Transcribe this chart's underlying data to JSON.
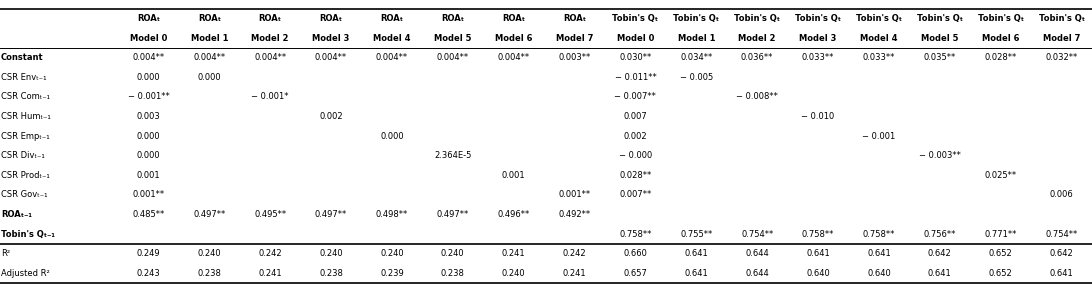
{
  "col_headers_line1": [
    "",
    "ROAₜ",
    "ROAₜ",
    "ROAₜ",
    "ROAₜ",
    "ROAₜ",
    "ROAₜ",
    "ROAₜ",
    "ROAₜ",
    "Tobin's Qₜ",
    "Tobin's Qₜ",
    "Tobin's Qₜ",
    "Tobin's Qₜ",
    "Tobin's Qₜ",
    "Tobin's Qₜ",
    "Tobin's Qₜ",
    "Tobin's Qₜ"
  ],
  "col_headers_line2": [
    "",
    "Model 0",
    "Model 1",
    "Model 2",
    "Model 3",
    "Model 4",
    "Model 5",
    "Model 6",
    "Model 7",
    "Model 0",
    "Model 1",
    "Model 2",
    "Model 3",
    "Model 4",
    "Model 5",
    "Model 6",
    "Model 7"
  ],
  "rows": [
    {
      "label": "Constant",
      "bold": true,
      "italic": false,
      "separator_above": false,
      "values": [
        "0.004**",
        "0.004**",
        "0.004**",
        "0.004**",
        "0.004**",
        "0.004**",
        "0.004**",
        "0.003**",
        "0.030**",
        "0.034**",
        "0.036**",
        "0.033**",
        "0.033**",
        "0.035**",
        "0.028**",
        "0.032**"
      ]
    },
    {
      "label": "CSR Envₜ-ₜ-1",
      "bold": false,
      "italic": false,
      "separator_above": false,
      "sub_label": "t-1",
      "values": [
        "0.000",
        "0.000",
        "",
        "",
        "",
        "",
        "",
        "",
        "− 0.011**",
        "− 0.005",
        "",
        "",
        "",
        "",
        "",
        ""
      ]
    },
    {
      "label": "CSR Comₜ-ₜ-1",
      "bold": false,
      "italic": false,
      "separator_above": false,
      "values": [
        "− 0.001**",
        "",
        "− 0.001*",
        "",
        "",
        "",
        "",
        "",
        "− 0.007**",
        "",
        "− 0.008**",
        "",
        "",
        "",
        "",
        ""
      ]
    },
    {
      "label": "CSR Humₜ-ₜ-1",
      "bold": false,
      "italic": false,
      "separator_above": false,
      "values": [
        "0.003",
        "",
        "",
        "0.002",
        "",
        "",
        "",
        "",
        "0.007",
        "",
        "",
        "− 0.010",
        "",
        "",
        "",
        ""
      ]
    },
    {
      "label": "CSR Empₜ-ₜ-1",
      "bold": false,
      "italic": false,
      "separator_above": false,
      "values": [
        "0.000",
        "",
        "",
        "",
        "0.000",
        "",
        "",
        "",
        "0.002",
        "",
        "",
        "",
        "− 0.001",
        "",
        "",
        ""
      ]
    },
    {
      "label": "CSR Divₜ-ₜ-1",
      "bold": false,
      "italic": false,
      "separator_above": false,
      "values": [
        "0.000",
        "",
        "",
        "",
        "",
        "2.364E-5",
        "",
        "",
        "− 0.000",
        "",
        "",
        "",
        "",
        "− 0.003**",
        "",
        ""
      ]
    },
    {
      "label": "CSR Prodₜ-ₜ-1",
      "bold": false,
      "italic": false,
      "separator_above": false,
      "values": [
        "0.001",
        "",
        "",
        "",
        "",
        "",
        "0.001",
        "",
        "0.028**",
        "",
        "",
        "",
        "",
        "",
        "0.025**",
        ""
      ]
    },
    {
      "label": "CSR Govₜ-ₜ-1",
      "bold": false,
      "italic": false,
      "separator_above": false,
      "values": [
        "0.001**",
        "",
        "",
        "",
        "",
        "",
        "",
        "0.001**",
        "0.007**",
        "",
        "",
        "",
        "",
        "",
        "",
        "0.006"
      ]
    },
    {
      "label": "ROAₜ-1",
      "bold": true,
      "italic": false,
      "separator_above": false,
      "values": [
        "0.485**",
        "0.497**",
        "0.495**",
        "0.497**",
        "0.498**",
        "0.497**",
        "0.496**",
        "0.492**",
        "",
        "",
        "",
        "",
        "",
        "",
        "",
        ""
      ]
    },
    {
      "label": "Tobin's Qₜ-1",
      "bold": true,
      "italic": false,
      "separator_above": false,
      "values": [
        "",
        "",
        "",
        "",
        "",
        "",
        "",
        "",
        "0.758**",
        "0.755**",
        "0.754**",
        "0.758**",
        "0.758**",
        "0.756**",
        "0.771**",
        "0.754**"
      ]
    },
    {
      "label": "R²",
      "bold": false,
      "italic": false,
      "separator_above": true,
      "values": [
        "0.249",
        "0.240",
        "0.242",
        "0.240",
        "0.240",
        "0.240",
        "0.241",
        "0.242",
        "0.660",
        "0.641",
        "0.644",
        "0.641",
        "0.641",
        "0.642",
        "0.652",
        "0.642"
      ]
    },
    {
      "label": "Adjusted R²",
      "bold": false,
      "italic": false,
      "separator_above": false,
      "values": [
        "0.243",
        "0.238",
        "0.241",
        "0.238",
        "0.239",
        "0.238",
        "0.240",
        "0.241",
        "0.657",
        "0.641",
        "0.644",
        "0.640",
        "0.640",
        "0.641",
        "0.652",
        "0.641"
      ]
    }
  ],
  "label_display": [
    "Constant",
    "CSR Env",
    "CSR Com",
    "CSR Hum",
    "CSR Emp",
    "CSR Div",
    "CSR Prod",
    "CSR Gov",
    "ROA",
    "Tobin's Q",
    "R²",
    "Adjusted R²"
  ],
  "label_sub": [
    "",
    "t-1",
    "t-1",
    "t-1",
    "t-1",
    "t-1",
    "t-1",
    "t-1",
    "t-1",
    "t-1",
    "",
    ""
  ],
  "bg_color": "#ffffff",
  "font_size": 6.0,
  "header_font_size": 6.0
}
